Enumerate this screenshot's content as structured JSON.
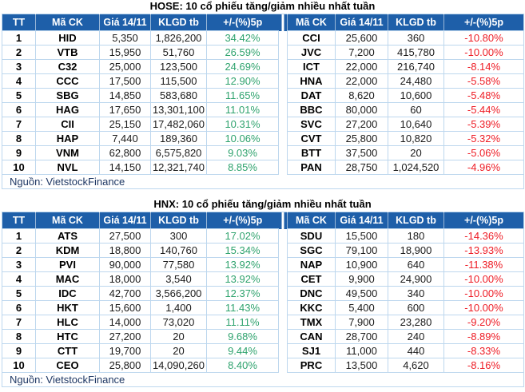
{
  "colors": {
    "header_bg": "#1E5FA9",
    "header_text": "#FFFFFF",
    "gain": "#2FA36E",
    "loss": "#EE1C25",
    "grid_border": "#BDD7EE",
    "source_text": "#1F3864",
    "body_text": "#1A1A1A"
  },
  "chart_data": [
    {
      "type": "table",
      "title": "HOSE: 10 cổ phiếu tăng/giảm nhiều nhất tuần",
      "columns": [
        "TT",
        "Mã CK",
        "Giá 14/11",
        "KLGD tb",
        "+/-(%)5p",
        "Mã CK",
        "Giá 14/11",
        "KLGD tb",
        "+/-(%)5p"
      ],
      "source": "Nguồn: VietstockFinance",
      "rows": [
        [
          "1",
          "HID",
          "5,350",
          "1,826,200",
          "34.42%",
          "CCI",
          "25,600",
          "360",
          "-10.80%"
        ],
        [
          "2",
          "VTB",
          "15,950",
          "51,760",
          "26.59%",
          "JVC",
          "7,200",
          "415,780",
          "-10.00%"
        ],
        [
          "3",
          "C32",
          "25,000",
          "123,500",
          "24.69%",
          "ICT",
          "22,000",
          "216,740",
          "-8.14%"
        ],
        [
          "4",
          "CCC",
          "17,500",
          "115,500",
          "12.90%",
          "HNA",
          "22,000",
          "24,480",
          "-5.58%"
        ],
        [
          "5",
          "SBG",
          "14,850",
          "583,680",
          "11.65%",
          "DAT",
          "8,620",
          "10,600",
          "-5.48%"
        ],
        [
          "6",
          "HAG",
          "17,650",
          "13,301,100",
          "11.01%",
          "BBC",
          "80,000",
          "60",
          "-5.44%"
        ],
        [
          "7",
          "CII",
          "25,150",
          "17,482,060",
          "10.31%",
          "SVC",
          "27,200",
          "10,640",
          "-5.39%"
        ],
        [
          "8",
          "HAP",
          "7,440",
          "189,360",
          "10.06%",
          "CVT",
          "25,800",
          "10,820",
          "-5.32%"
        ],
        [
          "9",
          "VNM",
          "62,800",
          "6,575,820",
          "9.03%",
          "BTT",
          "37,500",
          "20",
          "-5.06%"
        ],
        [
          "10",
          "NVL",
          "14,150",
          "12,321,740",
          "8.85%",
          "PAN",
          "28,750",
          "1,024,520",
          "-4.96%"
        ]
      ]
    },
    {
      "type": "table",
      "title": "HNX: 10 cổ phiếu tăng/giảm nhiều nhất tuần",
      "columns": [
        "TT",
        "Mã CK",
        "Giá 14/11",
        "KLGD tb",
        "+/-(%)5p",
        "Mã CK",
        "Giá 14/11",
        "KLGD tb",
        "+/-(%)5p"
      ],
      "source": "Nguồn: VietstockFinance",
      "rows": [
        [
          "1",
          "ATS",
          "27,500",
          "300",
          "17.02%",
          "SDU",
          "15,500",
          "180",
          "-14.36%"
        ],
        [
          "2",
          "KDM",
          "18,800",
          "140,760",
          "15.34%",
          "SGC",
          "79,100",
          "18,900",
          "-13.93%"
        ],
        [
          "3",
          "PVI",
          "90,000",
          "77,580",
          "13.92%",
          "NAP",
          "10,900",
          "640",
          "-11.38%"
        ],
        [
          "4",
          "MAC",
          "18,000",
          "3,540",
          "13.92%",
          "CET",
          "9,900",
          "24,900",
          "-10.00%"
        ],
        [
          "5",
          "IDC",
          "42,700",
          "3,566,200",
          "12.37%",
          "DNC",
          "49,500",
          "340",
          "-10.00%"
        ],
        [
          "6",
          "HKT",
          "15,600",
          "1,400",
          "11.43%",
          "KKC",
          "5,400",
          "600",
          "-10.00%"
        ],
        [
          "7",
          "HLC",
          "14,000",
          "73,020",
          "11.11%",
          "TMX",
          "7,900",
          "23,280",
          "-9.20%"
        ],
        [
          "8",
          "HTC",
          "27,200",
          "20",
          "9.68%",
          "CAN",
          "28,700",
          "240",
          "-8.89%"
        ],
        [
          "9",
          "CTT",
          "19,700",
          "20",
          "9.44%",
          "SJ1",
          "11,000",
          "440",
          "-8.33%"
        ],
        [
          "10",
          "CEO",
          "25,800",
          "14,090,260",
          "8.40%",
          "PRC",
          "13,500",
          "4,620",
          "-8.16%"
        ]
      ]
    }
  ]
}
